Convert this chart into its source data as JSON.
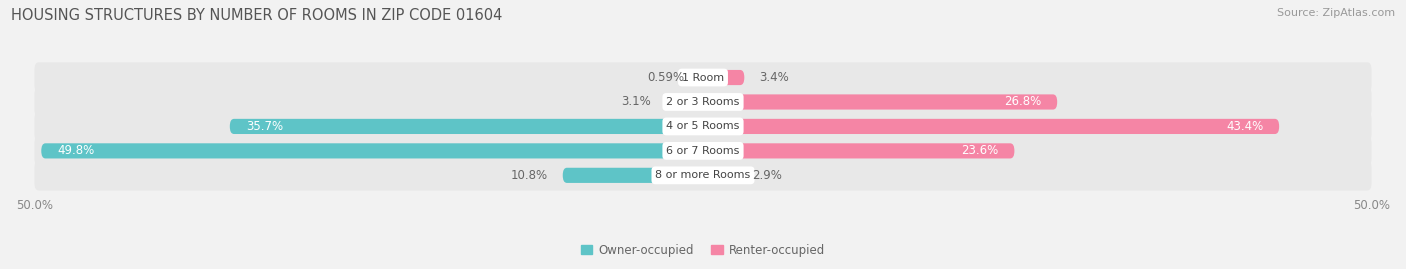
{
  "title": "HOUSING STRUCTURES BY NUMBER OF ROOMS IN ZIP CODE 01604",
  "source": "Source: ZipAtlas.com",
  "categories": [
    "1 Room",
    "2 or 3 Rooms",
    "4 or 5 Rooms",
    "6 or 7 Rooms",
    "8 or more Rooms"
  ],
  "owner_values": [
    0.59,
    3.1,
    35.7,
    49.8,
    10.8
  ],
  "renter_values": [
    3.4,
    26.8,
    43.4,
    23.6,
    2.9
  ],
  "owner_color": "#5ec4c7",
  "renter_color": "#f585a5",
  "owner_label": "Owner-occupied",
  "renter_label": "Renter-occupied",
  "max_val": 50.0,
  "axis_label_left": "50.0%",
  "axis_label_right": "50.0%",
  "background_color": "#f2f2f2",
  "bar_bg_color": "#e8e8e8",
  "title_fontsize": 10.5,
  "source_fontsize": 8,
  "bar_label_fontsize": 8.5,
  "category_fontsize": 8,
  "legend_fontsize": 8.5,
  "axis_fontsize": 8.5
}
